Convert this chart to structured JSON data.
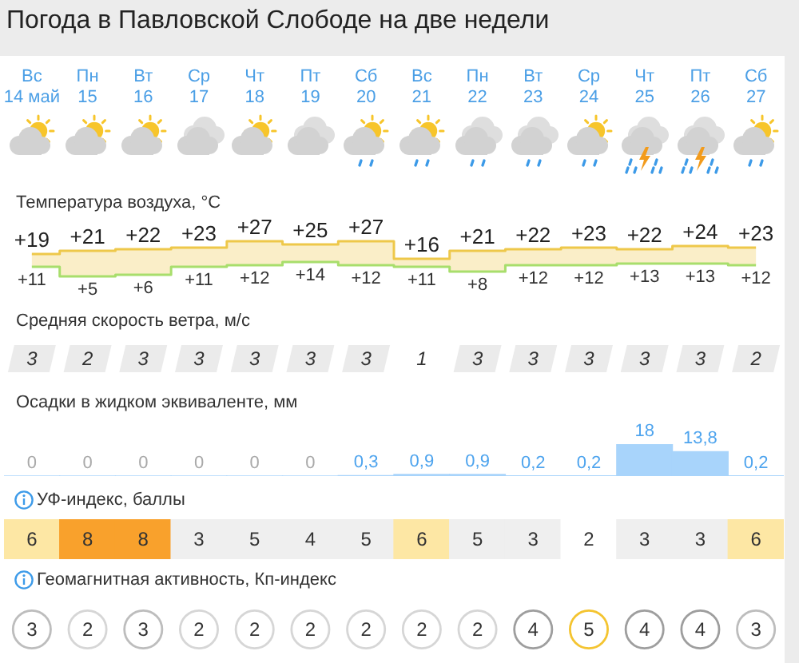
{
  "chart_data": [
    {
      "type": "step",
      "title": "Погода в Павловской Слободе на две недели",
      "subtitle": "Температура воздуха, °C",
      "categories": [
        "Вс\n14 май",
        "Пн\n15",
        "Вт\n16",
        "Ср\n17",
        "Чт\n18",
        "Пт\n19",
        "Сб\n20",
        "Вс\n21",
        "Пн\n22",
        "Вт\n23",
        "Ср\n24",
        "Чт\n25",
        "Пт\n26",
        "Сб\n27"
      ],
      "tick_labels": "x",
      "series": [
        {
          "color": "#eec84a",
          "values": [
            19,
            21,
            22,
            23,
            27,
            25,
            27,
            16,
            21,
            22,
            23,
            22,
            24,
            23
          ],
          "value_labels": [
            "+19",
            "+21",
            "+22",
            "+23",
            "+27",
            "+25",
            "+27",
            "+16",
            "+21",
            "+22",
            "+23",
            "+22",
            "+24",
            "+23"
          ],
          "lower": [
            11,
            5,
            6,
            11,
            12,
            14,
            12,
            11,
            8,
            12,
            12,
            13,
            13,
            12
          ],
          "upper": [
            19,
            21,
            22,
            23,
            27,
            25,
            27,
            16,
            21,
            22,
            23,
            22,
            24,
            23
          ]
        },
        {
          "color": "#a8de6c",
          "values": [
            11,
            5,
            6,
            11,
            12,
            14,
            12,
            11,
            8,
            12,
            12,
            13,
            13,
            12
          ],
          "value_labels": [
            "+11",
            "+5",
            "+6",
            "+11",
            "+12",
            "+14",
            "+12",
            "+11",
            "+8",
            "+12",
            "+12",
            "+13",
            "+13",
            "+12"
          ]
        }
      ]
    },
    {
      "type": "other",
      "title": "Средняя скорость ветра, м/с",
      "categories": [
        null,
        null,
        null,
        null,
        null,
        null,
        null,
        null,
        null,
        null,
        null,
        null,
        null,
        null
      ],
      "data_labels": true,
      "values": [
        3,
        2,
        3,
        3,
        3,
        3,
        3,
        1,
        3,
        3,
        3,
        3,
        3,
        2
      ],
      "colors": [
        "#ebebeb",
        "#ebebeb",
        "#ebebeb",
        "#ebebeb",
        "#ebebeb",
        "#ebebeb",
        "#ebebeb",
        "#ffffff",
        "#ebebeb",
        "#ebebeb",
        "#ebebeb",
        "#ebebeb",
        "#ebebeb",
        "#ebebeb"
      ]
    },
    {
      "type": "bar",
      "title": "Осадки в жидком эквиваленте, мм",
      "categories": [
        null,
        null,
        null,
        null,
        null,
        null,
        null,
        null,
        null,
        null,
        null,
        null,
        null,
        null
      ],
      "tick_labels": false,
      "color": "#a8d4fb",
      "values": [
        0,
        0,
        0,
        0,
        0,
        0,
        0.3,
        0.9,
        0.9,
        0.2,
        0.2,
        18,
        13.8,
        0.2
      ],
      "value_labels": [
        "0",
        "0",
        "0",
        "0",
        "0",
        "0",
        "0,3",
        "0,9",
        "0,9",
        "0,2",
        "0,2",
        "18",
        "13,8",
        "0,2"
      ]
    },
    {
      "type": "other",
      "title": "УФ-индекс, баллы",
      "categories": [
        null,
        null,
        null,
        null,
        null,
        null,
        null,
        null,
        null,
        null,
        null,
        null,
        null,
        null
      ],
      "data_labels": true,
      "values": [
        6,
        8,
        8,
        3,
        5,
        4,
        5,
        6,
        5,
        3,
        2,
        3,
        3,
        6
      ],
      "colors": [
        "#fde7a4",
        "#f9a12c",
        "#f9a12c",
        "#efefef",
        "#efefef",
        "#efefef",
        "#efefef",
        "#fde7a4",
        "#efefef",
        "#efefef",
        "#ffffff",
        "#efefef",
        "#efefef",
        "#fde7a4"
      ]
    },
    {
      "type": "other",
      "title": "Геомагнитная активность, Кп-индекс",
      "categories": [
        null,
        null,
        null,
        null,
        null,
        null,
        null,
        null,
        null,
        null,
        null,
        null,
        null,
        null
      ],
      "data_labels": true,
      "values": [
        3,
        2,
        3,
        2,
        2,
        2,
        2,
        2,
        2,
        4,
        5,
        4,
        4,
        3
      ],
      "colors": [
        "#bdbdbd",
        "#d6d6d6",
        "#bdbdbd",
        "#d6d6d6",
        "#d6d6d6",
        "#d6d6d6",
        "#d6d6d6",
        "#d6d6d6",
        "#d6d6d6",
        "#9e9e9e",
        "#f4c430",
        "#9e9e9e",
        "#9e9e9e",
        "#bdbdbd"
      ]
    }
  ]
}
